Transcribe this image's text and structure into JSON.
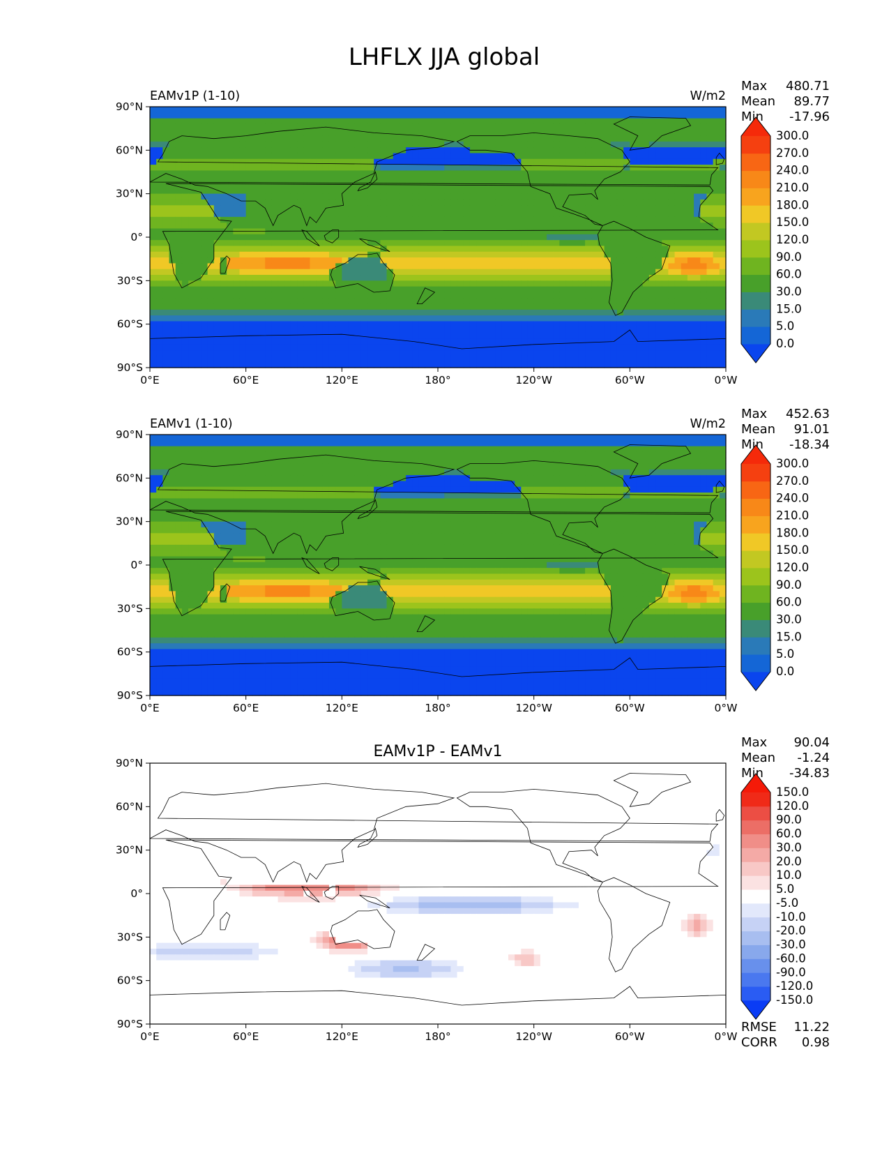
{
  "title": "LHFLX JJA global",
  "x_ticks": [
    "0°E",
    "60°E",
    "120°E",
    "180°",
    "120°W",
    "60°W",
    "0°W"
  ],
  "y_ticks": [
    "90°N",
    "60°N",
    "30°N",
    "0°",
    "30°S",
    "60°S",
    "90°S"
  ],
  "panels": [
    {
      "id": "test",
      "left_title": "EAMv1P (1-10)",
      "center_title": "",
      "right_title": "W/m2",
      "stats": [
        {
          "label": "Max",
          "value": "480.71"
        },
        {
          "label": "Mean",
          "value": "89.77"
        },
        {
          "label": "Min",
          "value": "-17.96"
        }
      ],
      "colorbar": {
        "levels": [
          "0.0",
          "5.0",
          "15.0",
          "30.0",
          "60.0",
          "90.0",
          "120.0",
          "150.0",
          "180.0",
          "210.0",
          "240.0",
          "270.0",
          "300.0"
        ],
        "colors": [
          "#0a45ee",
          "#1466d6",
          "#2a7ab8",
          "#3a8a78",
          "#48a02a",
          "#6fb420",
          "#9cc41c",
          "#c2c822",
          "#f0c826",
          "#f8a41e",
          "#f88818",
          "#f86614",
          "#f54010",
          "#f52a0a"
        ]
      }
    },
    {
      "id": "ref",
      "left_title": "EAMv1 (1-10)",
      "center_title": "",
      "right_title": "W/m2",
      "stats": [
        {
          "label": "Max",
          "value": "452.63"
        },
        {
          "label": "Mean",
          "value": "91.01"
        },
        {
          "label": "Min",
          "value": "-18.34"
        }
      ],
      "colorbar": {
        "levels": [
          "0.0",
          "5.0",
          "15.0",
          "30.0",
          "60.0",
          "90.0",
          "120.0",
          "150.0",
          "180.0",
          "210.0",
          "240.0",
          "270.0",
          "300.0"
        ],
        "colors": [
          "#0a45ee",
          "#1466d6",
          "#2a7ab8",
          "#3a8a78",
          "#48a02a",
          "#6fb420",
          "#9cc41c",
          "#c2c822",
          "#f0c826",
          "#f8a41e",
          "#f88818",
          "#f86614",
          "#f54010",
          "#f52a0a"
        ]
      }
    },
    {
      "id": "diff",
      "left_title": "",
      "center_title": "EAMv1P - EAMv1",
      "right_title": "",
      "stats": [
        {
          "label": "Max",
          "value": "90.04"
        },
        {
          "label": "Mean",
          "value": "-1.24"
        },
        {
          "label": "Min",
          "value": "-34.83"
        }
      ],
      "extra_stats": [
        {
          "label": "RMSE",
          "value": "11.22"
        },
        {
          "label": "CORR",
          "value": "0.98"
        }
      ],
      "colorbar": {
        "levels": [
          "-150.0",
          "-120.0",
          "-90.0",
          "-60.0",
          "-30.0",
          "-20.0",
          "-10.0",
          "-5.0",
          "5.0",
          "10.0",
          "20.0",
          "30.0",
          "60.0",
          "90.0",
          "120.0",
          "150.0"
        ],
        "colors": [
          "#0a3cf5",
          "#2a5cf3",
          "#4a78ef",
          "#6890ec",
          "#88a8ec",
          "#a8bef0",
          "#c6d2f5",
          "#e2e8fb",
          "#ffffff",
          "#fbe2e2",
          "#f8c8c6",
          "#f4aaa6",
          "#f08e88",
          "#ec6e66",
          "#ec4e44",
          "#f02a18",
          "#f51a08"
        ]
      }
    }
  ],
  "chart_data": [
    {
      "type": "heatmap",
      "title": "EAMv1P (1-10)",
      "units": "W/m2",
      "xlim": [
        0,
        360
      ],
      "ylim": [
        -90,
        90
      ],
      "x_tick_values": [
        0,
        60,
        120,
        180,
        240,
        300,
        360
      ],
      "y_tick_values": [
        90,
        60,
        30,
        0,
        -30,
        -60,
        -90
      ],
      "contour_levels": [
        0,
        5,
        15,
        30,
        60,
        90,
        120,
        150,
        180,
        210,
        240,
        270,
        300
      ],
      "max": 480.71,
      "mean": 89.77,
      "min": -17.96
    },
    {
      "type": "heatmap",
      "title": "EAMv1 (1-10)",
      "units": "W/m2",
      "xlim": [
        0,
        360
      ],
      "ylim": [
        -90,
        90
      ],
      "x_tick_values": [
        0,
        60,
        120,
        180,
        240,
        300,
        360
      ],
      "y_tick_values": [
        90,
        60,
        30,
        0,
        -30,
        -60,
        -90
      ],
      "contour_levels": [
        0,
        5,
        15,
        30,
        60,
        90,
        120,
        150,
        180,
        210,
        240,
        270,
        300
      ],
      "max": 452.63,
      "mean": 91.01,
      "min": -18.34
    },
    {
      "type": "heatmap",
      "title": "EAMv1P - EAMv1",
      "xlim": [
        0,
        360
      ],
      "ylim": [
        -90,
        90
      ],
      "x_tick_values": [
        0,
        60,
        120,
        180,
        240,
        300,
        360
      ],
      "y_tick_values": [
        90,
        60,
        30,
        0,
        -30,
        -60,
        -90
      ],
      "contour_levels": [
        -150,
        -120,
        -90,
        -60,
        -30,
        -20,
        -10,
        -5,
        5,
        10,
        20,
        30,
        60,
        90,
        120,
        150
      ],
      "max": 90.04,
      "mean": -1.24,
      "min": -34.83,
      "rmse": 11.22,
      "corr": 0.98
    }
  ]
}
